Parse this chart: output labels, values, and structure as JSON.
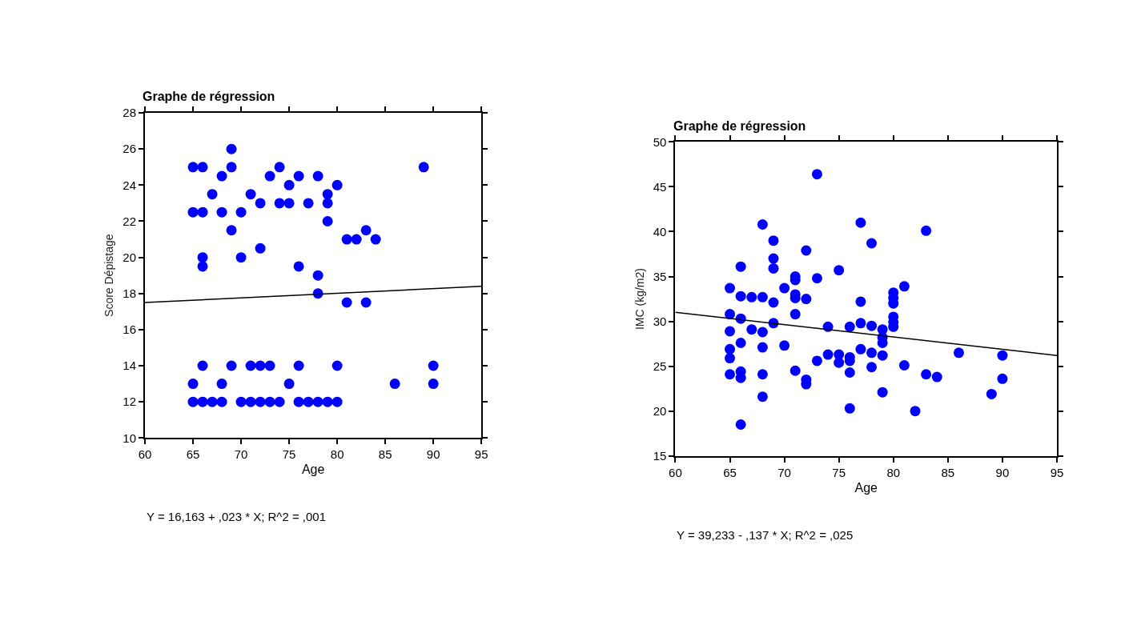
{
  "chart_data": [
    {
      "type": "scatter",
      "title": "Graphe de régression",
      "xlabel": "Age",
      "ylabel": "Score Dépistage",
      "xlim": [
        60,
        95
      ],
      "xticks": [
        60,
        65,
        70,
        75,
        80,
        85,
        90,
        95
      ],
      "ylim": [
        10,
        28
      ],
      "yticks": [
        10,
        12,
        14,
        16,
        18,
        20,
        22,
        24,
        26,
        28
      ],
      "grid": false,
      "series": [
        {
          "marker": "circle",
          "color": "#0000ff",
          "x": [
            65,
            66,
            65,
            66,
            67,
            68,
            68,
            69,
            69,
            69,
            70,
            70,
            71,
            72,
            72,
            73,
            74,
            74,
            75,
            75,
            76,
            76,
            77,
            78,
            78,
            78,
            79,
            79,
            79,
            80,
            81,
            81,
            82,
            83,
            83,
            84,
            89,
            66,
            66,
            65,
            65,
            66,
            66,
            67,
            68,
            68,
            69,
            70,
            71,
            71,
            72,
            72,
            73,
            73,
            74,
            75,
            76,
            76,
            77,
            78,
            79,
            80,
            80,
            86,
            90,
            90
          ],
          "values": [
            25,
            25,
            22.5,
            22.5,
            23.5,
            24.5,
            22.5,
            26,
            25,
            21.5,
            22.5,
            20,
            23.5,
            23,
            20.5,
            24.5,
            25,
            23,
            23,
            24,
            24.5,
            19.5,
            23,
            24.5,
            19,
            18,
            23.5,
            23,
            22,
            24,
            21,
            17.5,
            21,
            21.5,
            17.5,
            21,
            25,
            20,
            19.5,
            13,
            12,
            14,
            12,
            12,
            13,
            12,
            14,
            12,
            14,
            12,
            14,
            12,
            14,
            12,
            12,
            13,
            14,
            12,
            12,
            12,
            12,
            14,
            12,
            13,
            14,
            13
          ]
        },
        {
          "type": "line",
          "marker": "none",
          "color": "#000000",
          "x": [
            60,
            95
          ],
          "values": [
            17.5,
            18.4
          ]
        }
      ],
      "annotations": [
        "Y = 16,163 + ,023 * X; R^2 = ,001"
      ]
    },
    {
      "type": "scatter",
      "title": "Graphe de régression",
      "xlabel": "Age",
      "ylabel": "IMC (kg/m2)",
      "xlim": [
        60,
        95
      ],
      "xticks": [
        60,
        65,
        70,
        75,
        80,
        85,
        90,
        95
      ],
      "ylim": [
        15,
        50
      ],
      "yticks": [
        15,
        20,
        25,
        30,
        35,
        40,
        45,
        50
      ],
      "grid": false,
      "series": [
        {
          "marker": "circle",
          "color": "#0000ff",
          "x": [
            73,
            68,
            77,
            83,
            69,
            78,
            72,
            69,
            69,
            66,
            75,
            71,
            71,
            73,
            81,
            65,
            70,
            80,
            80,
            80,
            66,
            67,
            68,
            71,
            71,
            72,
            69,
            77,
            65,
            71,
            66,
            80,
            80,
            80,
            69,
            74,
            76,
            77,
            78,
            79,
            79,
            79,
            67,
            68,
            65,
            66,
            70,
            68,
            65,
            65,
            77,
            78,
            74,
            75,
            75,
            76,
            76,
            76,
            79,
            73,
            86,
            90,
            90,
            81,
            78,
            65,
            66,
            66,
            68,
            71,
            72,
            72,
            83,
            84,
            79,
            89,
            68,
            76,
            82,
            66
          ],
          "values": [
            46.4,
            40.8,
            41.0,
            40.1,
            39.0,
            38.7,
            37.9,
            37.0,
            35.9,
            36.1,
            35.7,
            35.0,
            34.6,
            34.8,
            33.9,
            33.7,
            33.7,
            33.2,
            32.6,
            32.0,
            32.8,
            32.7,
            32.7,
            33.0,
            32.6,
            32.5,
            32.1,
            32.2,
            30.8,
            30.8,
            30.3,
            30.5,
            29.9,
            29.4,
            29.8,
            29.4,
            29.4,
            29.8,
            29.5,
            29.1,
            28.2,
            27.6,
            29.1,
            28.8,
            28.9,
            27.6,
            27.3,
            27.1,
            26.9,
            25.9,
            26.9,
            26.5,
            26.3,
            26.3,
            25.4,
            26.0,
            25.6,
            24.3,
            26.2,
            25.6,
            26.5,
            26.2,
            23.6,
            25.1,
            24.9,
            24.1,
            24.4,
            23.7,
            24.1,
            24.5,
            23.5,
            23.0,
            24.1,
            23.8,
            22.1,
            21.9,
            21.6,
            20.3,
            20.0,
            18.5
          ]
        },
        {
          "type": "line",
          "marker": "none",
          "color": "#000000",
          "x": [
            60,
            95
          ],
          "values": [
            31.0,
            26.2
          ]
        }
      ],
      "annotations": [
        "Y = 39,233 - ,137 * X; R^2 = ,025"
      ]
    }
  ]
}
